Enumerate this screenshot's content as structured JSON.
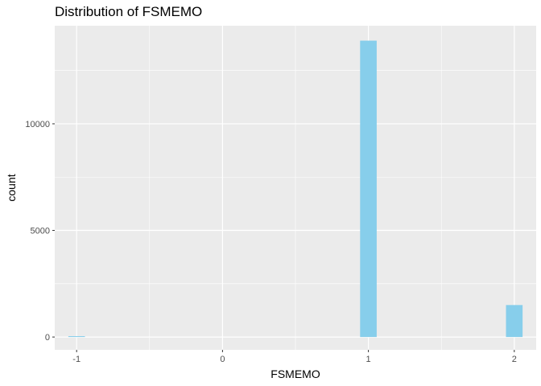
{
  "chart_data": {
    "type": "bar",
    "title": "Distribution of FSMEMO",
    "xlabel": "FSMEMO",
    "ylabel": "count",
    "x_ticks": [
      "-1",
      "0",
      "1",
      "2"
    ],
    "y_ticks": [
      "0",
      "5000",
      "10000"
    ],
    "xlim": [
      -1.15,
      2.15
    ],
    "ylim": [
      -600,
      14600
    ],
    "bins": [
      {
        "x": -1,
        "count": 40
      },
      {
        "x": 1,
        "count": 13900
      },
      {
        "x": 2,
        "count": 1500
      }
    ],
    "bar_color": "#87CEEB",
    "panel_background": "#EBEBEB",
    "grid": true
  }
}
